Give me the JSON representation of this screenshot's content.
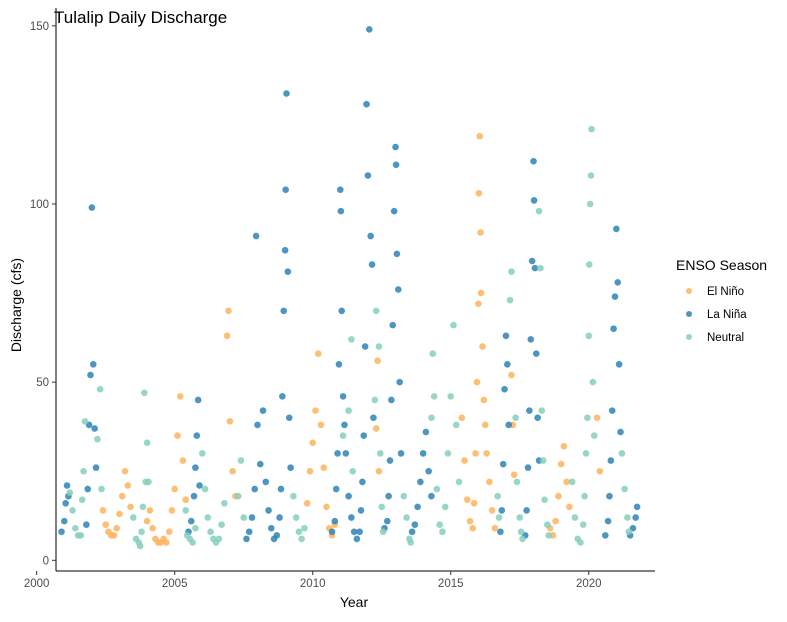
{
  "chart_data": {
    "type": "scatter",
    "title": "Tulalip Daily Discharge",
    "xlabel": "Year",
    "ylabel": "Discharge (cfs)",
    "xlim": [
      2000.7,
      2022.4
    ],
    "ylim": [
      -3,
      155
    ],
    "x_ticks": [
      2000,
      2005,
      2010,
      2015,
      2020
    ],
    "x_tick_labels": [
      "2000",
      "2005",
      "2010",
      "2015",
      "2020"
    ],
    "y_ticks": [
      0,
      50,
      100,
      150
    ],
    "y_tick_labels": [
      "0",
      "50",
      "100",
      "150"
    ],
    "grid": false,
    "legend": {
      "title": "ENSO Season",
      "position": "right",
      "entries": [
        "El Niño",
        "La Niña",
        "Neutral"
      ]
    },
    "colors": {
      "El Niño": "#fdb45c",
      "La Niña": "#2f84b7",
      "Neutral": "#86cfbc"
    },
    "series": [
      {
        "name": "El Niño",
        "points": [
          [
            2002.4,
            14
          ],
          [
            2002.5,
            10
          ],
          [
            2002.6,
            8
          ],
          [
            2002.7,
            7
          ],
          [
            2002.8,
            7
          ],
          [
            2002.9,
            9
          ],
          [
            2003.0,
            13
          ],
          [
            2003.1,
            18
          ],
          [
            2003.2,
            25
          ],
          [
            2003.3,
            21
          ],
          [
            2003.4,
            15
          ],
          [
            2004.0,
            11
          ],
          [
            2004.1,
            14
          ],
          [
            2004.2,
            9
          ],
          [
            2004.3,
            6
          ],
          [
            2004.4,
            5
          ],
          [
            2004.5,
            5
          ],
          [
            2004.6,
            6
          ],
          [
            2004.7,
            5
          ],
          [
            2004.8,
            8
          ],
          [
            2004.9,
            14
          ],
          [
            2005.0,
            20
          ],
          [
            2005.1,
            35
          ],
          [
            2005.2,
            46
          ],
          [
            2005.3,
            28
          ],
          [
            2005.4,
            17
          ],
          [
            2006.9,
            63
          ],
          [
            2006.95,
            70
          ],
          [
            2007.0,
            39
          ],
          [
            2007.1,
            25
          ],
          [
            2007.2,
            18
          ],
          [
            2009.8,
            16
          ],
          [
            2009.9,
            25
          ],
          [
            2010.0,
            33
          ],
          [
            2010.1,
            42
          ],
          [
            2010.2,
            58
          ],
          [
            2010.3,
            38
          ],
          [
            2010.4,
            26
          ],
          [
            2010.5,
            15
          ],
          [
            2010.6,
            9
          ],
          [
            2010.7,
            7
          ],
          [
            2010.8,
            10
          ],
          [
            2012.3,
            37
          ],
          [
            2012.35,
            56
          ],
          [
            2012.4,
            25
          ],
          [
            2015.4,
            40
          ],
          [
            2015.5,
            28
          ],
          [
            2015.6,
            17
          ],
          [
            2015.7,
            11
          ],
          [
            2015.8,
            9
          ],
          [
            2015.85,
            16
          ],
          [
            2015.9,
            30
          ],
          [
            2015.95,
            50
          ],
          [
            2016.0,
            72
          ],
          [
            2016.02,
            103
          ],
          [
            2016.05,
            119
          ],
          [
            2016.08,
            92
          ],
          [
            2016.1,
            75
          ],
          [
            2016.15,
            60
          ],
          [
            2016.2,
            45
          ],
          [
            2016.25,
            38
          ],
          [
            2016.3,
            30
          ],
          [
            2016.4,
            22
          ],
          [
            2016.5,
            14
          ],
          [
            2016.6,
            9
          ],
          [
            2017.2,
            52
          ],
          [
            2017.25,
            38
          ],
          [
            2017.3,
            24
          ],
          [
            2018.6,
            9
          ],
          [
            2018.7,
            7
          ],
          [
            2018.8,
            11
          ],
          [
            2018.9,
            18
          ],
          [
            2019.0,
            27
          ],
          [
            2019.1,
            32
          ],
          [
            2019.2,
            22
          ],
          [
            2019.3,
            15
          ],
          [
            2020.3,
            40
          ],
          [
            2020.4,
            25
          ]
        ]
      },
      {
        "name": "La Niña",
        "points": [
          [
            2000.9,
            8
          ],
          [
            2001.0,
            11
          ],
          [
            2001.05,
            16
          ],
          [
            2001.1,
            21
          ],
          [
            2001.15,
            18
          ],
          [
            2001.8,
            10
          ],
          [
            2001.85,
            20
          ],
          [
            2001.9,
            38
          ],
          [
            2001.95,
            52
          ],
          [
            2002.0,
            99
          ],
          [
            2002.05,
            55
          ],
          [
            2002.1,
            37
          ],
          [
            2002.15,
            26
          ],
          [
            2005.5,
            8
          ],
          [
            2005.6,
            11
          ],
          [
            2005.7,
            18
          ],
          [
            2005.75,
            26
          ],
          [
            2005.8,
            35
          ],
          [
            2005.85,
            45
          ],
          [
            2005.9,
            21
          ],
          [
            2007.6,
            6
          ],
          [
            2007.7,
            8
          ],
          [
            2007.8,
            12
          ],
          [
            2007.9,
            20
          ],
          [
            2007.95,
            91
          ],
          [
            2008.0,
            38
          ],
          [
            2008.1,
            27
          ],
          [
            2008.2,
            42
          ],
          [
            2008.3,
            22
          ],
          [
            2008.4,
            14
          ],
          [
            2008.5,
            9
          ],
          [
            2008.6,
            6
          ],
          [
            2008.7,
            7
          ],
          [
            2008.8,
            12
          ],
          [
            2008.85,
            20
          ],
          [
            2008.9,
            46
          ],
          [
            2008.95,
            70
          ],
          [
            2009.0,
            87
          ],
          [
            2009.02,
            104
          ],
          [
            2009.05,
            131
          ],
          [
            2009.1,
            81
          ],
          [
            2009.15,
            40
          ],
          [
            2009.2,
            26
          ],
          [
            2010.7,
            8
          ],
          [
            2010.8,
            11
          ],
          [
            2010.85,
            20
          ],
          [
            2010.9,
            30
          ],
          [
            2010.95,
            55
          ],
          [
            2011.0,
            104
          ],
          [
            2011.02,
            98
          ],
          [
            2011.05,
            70
          ],
          [
            2011.1,
            46
          ],
          [
            2011.15,
            38
          ],
          [
            2011.2,
            30
          ],
          [
            2011.3,
            18
          ],
          [
            2011.4,
            12
          ],
          [
            2011.5,
            8
          ],
          [
            2011.6,
            6
          ],
          [
            2011.7,
            8
          ],
          [
            2011.75,
            14
          ],
          [
            2011.8,
            22
          ],
          [
            2011.85,
            35
          ],
          [
            2011.9,
            60
          ],
          [
            2011.95,
            128
          ],
          [
            2012.0,
            108
          ],
          [
            2012.05,
            149
          ],
          [
            2012.1,
            91
          ],
          [
            2012.15,
            83
          ],
          [
            2012.2,
            40
          ],
          [
            2012.6,
            9
          ],
          [
            2012.7,
            11
          ],
          [
            2012.75,
            18
          ],
          [
            2012.8,
            28
          ],
          [
            2012.85,
            45
          ],
          [
            2012.9,
            66
          ],
          [
            2012.95,
            98
          ],
          [
            2013.0,
            116
          ],
          [
            2013.02,
            111
          ],
          [
            2013.05,
            86
          ],
          [
            2013.1,
            76
          ],
          [
            2013.15,
            50
          ],
          [
            2013.2,
            30
          ],
          [
            2013.6,
            8
          ],
          [
            2013.7,
            10
          ],
          [
            2013.8,
            15
          ],
          [
            2013.9,
            22
          ],
          [
            2014.0,
            30
          ],
          [
            2014.1,
            36
          ],
          [
            2014.2,
            25
          ],
          [
            2014.3,
            18
          ],
          [
            2016.8,
            8
          ],
          [
            2016.85,
            14
          ],
          [
            2016.9,
            27
          ],
          [
            2016.95,
            48
          ],
          [
            2017.0,
            63
          ],
          [
            2017.05,
            55
          ],
          [
            2017.1,
            38
          ],
          [
            2017.7,
            7
          ],
          [
            2017.75,
            14
          ],
          [
            2017.8,
            26
          ],
          [
            2017.85,
            42
          ],
          [
            2017.9,
            62
          ],
          [
            2017.95,
            84
          ],
          [
            2018.0,
            112
          ],
          [
            2018.02,
            101
          ],
          [
            2018.05,
            82
          ],
          [
            2018.1,
            58
          ],
          [
            2018.15,
            40
          ],
          [
            2018.2,
            28
          ],
          [
            2020.6,
            7
          ],
          [
            2020.7,
            11
          ],
          [
            2020.75,
            18
          ],
          [
            2020.8,
            28
          ],
          [
            2020.85,
            42
          ],
          [
            2020.9,
            65
          ],
          [
            2020.95,
            74
          ],
          [
            2021.0,
            93
          ],
          [
            2021.05,
            78
          ],
          [
            2021.1,
            55
          ],
          [
            2021.15,
            36
          ],
          [
            2021.5,
            7
          ],
          [
            2021.6,
            9
          ],
          [
            2021.7,
            12
          ],
          [
            2021.75,
            15
          ]
        ]
      },
      {
        "name": "Neutral",
        "points": [
          [
            2001.2,
            19
          ],
          [
            2001.3,
            14
          ],
          [
            2001.4,
            9
          ],
          [
            2001.5,
            7
          ],
          [
            2001.6,
            7
          ],
          [
            2001.65,
            17
          ],
          [
            2001.7,
            25
          ],
          [
            2001.75,
            39
          ],
          [
            2002.2,
            34
          ],
          [
            2002.3,
            48
          ],
          [
            2002.35,
            20
          ],
          [
            2003.5,
            12
          ],
          [
            2003.6,
            6
          ],
          [
            2003.7,
            5
          ],
          [
            2003.75,
            4
          ],
          [
            2003.8,
            8
          ],
          [
            2003.85,
            15
          ],
          [
            2003.9,
            47
          ],
          [
            2003.95,
            22
          ],
          [
            2004.0,
            33
          ],
          [
            2004.05,
            22
          ],
          [
            2005.4,
            14
          ],
          [
            2005.45,
            7
          ],
          [
            2005.55,
            6
          ],
          [
            2005.65,
            5
          ],
          [
            2005.75,
            9
          ],
          [
            2006.0,
            30
          ],
          [
            2006.1,
            20
          ],
          [
            2006.2,
            12
          ],
          [
            2006.3,
            8
          ],
          [
            2006.4,
            6
          ],
          [
            2006.5,
            5
          ],
          [
            2006.6,
            6
          ],
          [
            2006.7,
            10
          ],
          [
            2006.8,
            16
          ],
          [
            2007.3,
            18
          ],
          [
            2007.4,
            28
          ],
          [
            2007.5,
            12
          ],
          [
            2009.3,
            18
          ],
          [
            2009.4,
            12
          ],
          [
            2009.5,
            8
          ],
          [
            2009.6,
            6
          ],
          [
            2009.7,
            9
          ],
          [
            2011.1,
            35
          ],
          [
            2011.3,
            42
          ],
          [
            2011.4,
            62
          ],
          [
            2011.45,
            25
          ],
          [
            2012.25,
            45
          ],
          [
            2012.3,
            70
          ],
          [
            2012.4,
            60
          ],
          [
            2012.45,
            30
          ],
          [
            2012.5,
            15
          ],
          [
            2012.55,
            8
          ],
          [
            2013.3,
            18
          ],
          [
            2013.4,
            12
          ],
          [
            2013.5,
            6
          ],
          [
            2013.55,
            5
          ],
          [
            2014.3,
            40
          ],
          [
            2014.35,
            58
          ],
          [
            2014.4,
            46
          ],
          [
            2014.5,
            20
          ],
          [
            2014.6,
            10
          ],
          [
            2014.7,
            8
          ],
          [
            2014.8,
            15
          ],
          [
            2014.9,
            30
          ],
          [
            2015.0,
            46
          ],
          [
            2015.1,
            66
          ],
          [
            2015.2,
            38
          ],
          [
            2015.3,
            22
          ],
          [
            2016.7,
            18
          ],
          [
            2016.75,
            12
          ],
          [
            2017.15,
            73
          ],
          [
            2017.2,
            81
          ],
          [
            2017.35,
            40
          ],
          [
            2017.4,
            22
          ],
          [
            2017.5,
            12
          ],
          [
            2017.55,
            8
          ],
          [
            2017.6,
            6
          ],
          [
            2018.2,
            98
          ],
          [
            2018.25,
            82
          ],
          [
            2018.3,
            42
          ],
          [
            2018.35,
            28
          ],
          [
            2018.4,
            17
          ],
          [
            2018.5,
            10
          ],
          [
            2018.55,
            7
          ],
          [
            2019.4,
            22
          ],
          [
            2019.5,
            12
          ],
          [
            2019.6,
            6
          ],
          [
            2019.7,
            5
          ],
          [
            2019.8,
            10
          ],
          [
            2019.85,
            18
          ],
          [
            2019.9,
            30
          ],
          [
            2019.95,
            40
          ],
          [
            2020.0,
            63
          ],
          [
            2020.02,
            83
          ],
          [
            2020.05,
            100
          ],
          [
            2020.08,
            108
          ],
          [
            2020.1,
            121
          ],
          [
            2020.15,
            50
          ],
          [
            2020.2,
            35
          ],
          [
            2021.2,
            30
          ],
          [
            2021.3,
            20
          ],
          [
            2021.4,
            12
          ],
          [
            2021.45,
            8
          ]
        ]
      }
    ]
  }
}
